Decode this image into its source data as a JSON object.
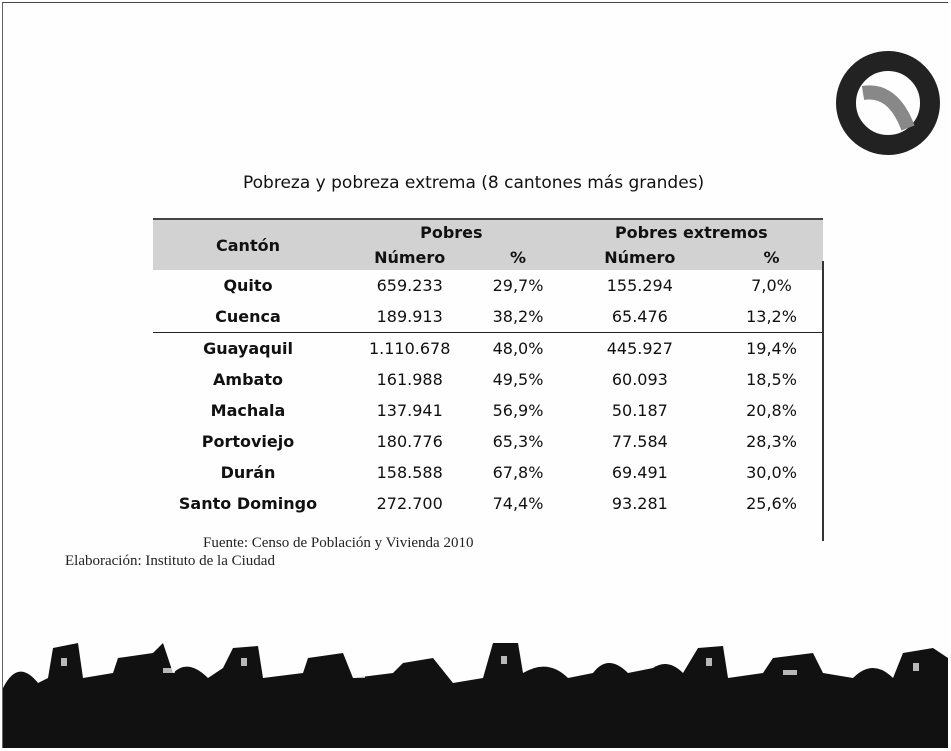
{
  "title": "Pobreza y pobreza extrema (8 cantones más grandes)",
  "table": {
    "header": {
      "canton": "Cantón",
      "groups": [
        "Pobres",
        "Pobres extremos"
      ],
      "subheaders": [
        "Número",
        "%",
        "Número",
        "%"
      ]
    },
    "rows": [
      [
        "Quito",
        "659.233",
        "29,7%",
        "155.294",
        "7,0%"
      ],
      [
        "Cuenca",
        "189.913",
        "38,2%",
        "65.476",
        "13,2%"
      ],
      [
        "Guayaquil",
        "1.110.678",
        "48,0%",
        "445.927",
        "19,4%"
      ],
      [
        "Ambato",
        "161.988",
        "49,5%",
        "60.093",
        "18,5%"
      ],
      [
        "Machala",
        "137.941",
        "56,9%",
        "50.187",
        "20,8%"
      ],
      [
        "Portoviejo",
        "180.776",
        "65,3%",
        "77.584",
        "28,3%"
      ],
      [
        "Durán",
        "158.588",
        "67,8%",
        "69.491",
        "30,0%"
      ],
      [
        "Santo Domingo",
        "272.700",
        "74,4%",
        "93.281",
        "25,6%"
      ]
    ]
  },
  "source": "Fuente: Censo de Población y Vivienda 2010",
  "credit": "Elaboración: Instituto de la Ciudad"
}
